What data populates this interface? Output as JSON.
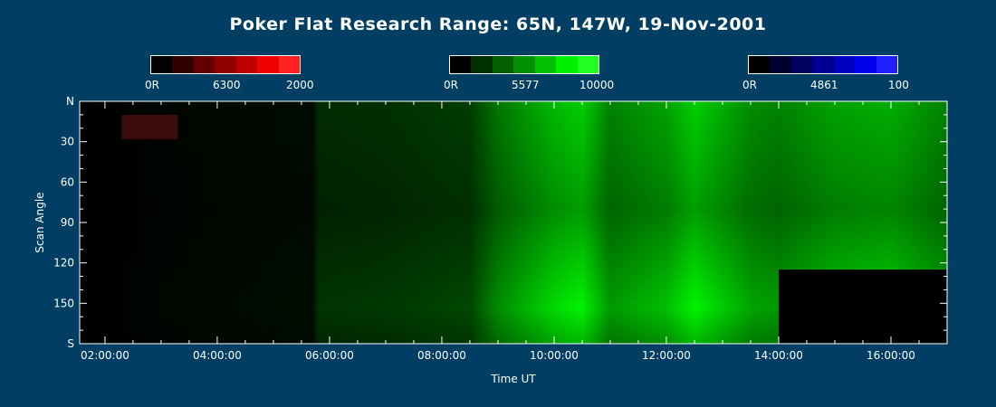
{
  "chart_data": {
    "type": "heatmap",
    "title": "Poker Flat Research Range: 65N, 147W, 19-Nov-2001",
    "xlabel": "Time UT",
    "ylabel": "Scan Angle",
    "x_range": [
      1.55,
      17.0
    ],
    "y_range": [
      0,
      180
    ],
    "x_ticks": [
      "02:00:00",
      "04:00:00",
      "06:00:00",
      "08:00:00",
      "10:00:00",
      "12:00:00",
      "14:00:00",
      "16:00:00"
    ],
    "x_tick_values": [
      2,
      4,
      6,
      8,
      10,
      12,
      14,
      16
    ],
    "y_ticks": [
      "N",
      "30",
      "60",
      "90",
      "120",
      "150",
      "S"
    ],
    "y_tick_values": [
      0,
      30,
      60,
      90,
      120,
      150,
      180
    ],
    "colorbars": [
      {
        "name": "6300",
        "min_label": "0R",
        "mid_label": "6300",
        "max_label": "2000",
        "colors": [
          "#000000",
          "#300000",
          "#600000",
          "#900000",
          "#c00000",
          "#f00000",
          "#ff2020"
        ]
      },
      {
        "name": "5577",
        "min_label": "0R",
        "mid_label": "5577",
        "max_label": "10000",
        "colors": [
          "#000000",
          "#003000",
          "#006000",
          "#009000",
          "#00c000",
          "#00f000",
          "#20ff20"
        ]
      },
      {
        "name": "4861",
        "min_label": "0R",
        "mid_label": "4861",
        "max_label": "100",
        "colors": [
          "#000000",
          "#000030",
          "#000060",
          "#000090",
          "#0000c0",
          "#0000f0",
          "#2020ff"
        ]
      }
    ],
    "data_gap": {
      "t_start": 14.0,
      "t_end": 17.0,
      "angle_start": 125,
      "angle_end": 180
    },
    "green_intensity_profile": [
      {
        "t": 1.6,
        "i": 0.0
      },
      {
        "t": 3.0,
        "i": 0.02
      },
      {
        "t": 5.7,
        "i": 0.05
      },
      {
        "t": 5.8,
        "i": 0.2
      },
      {
        "t": 7.0,
        "i": 0.22
      },
      {
        "t": 8.5,
        "i": 0.28
      },
      {
        "t": 9.0,
        "i": 0.55
      },
      {
        "t": 9.5,
        "i": 0.7
      },
      {
        "t": 10.0,
        "i": 0.85
      },
      {
        "t": 10.5,
        "i": 0.95
      },
      {
        "t": 11.0,
        "i": 0.6
      },
      {
        "t": 12.0,
        "i": 0.75
      },
      {
        "t": 12.5,
        "i": 0.95
      },
      {
        "t": 13.0,
        "i": 0.8
      },
      {
        "t": 13.5,
        "i": 0.65
      },
      {
        "t": 14.0,
        "i": 0.6
      },
      {
        "t": 15.0,
        "i": 0.75
      },
      {
        "t": 16.0,
        "i": 0.8
      },
      {
        "t": 17.0,
        "i": 0.6
      }
    ]
  }
}
